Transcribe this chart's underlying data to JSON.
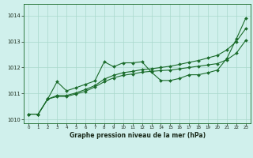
{
  "xlabel": "Graphe pression niveau de la mer (hPa)",
  "ylim": [
    1009.85,
    1014.45
  ],
  "xlim": [
    -0.5,
    23.5
  ],
  "xticks": [
    0,
    1,
    2,
    3,
    4,
    5,
    6,
    7,
    8,
    9,
    10,
    11,
    12,
    13,
    14,
    15,
    16,
    17,
    18,
    19,
    20,
    21,
    22,
    23
  ],
  "yticks": [
    1010,
    1011,
    1012,
    1013,
    1014
  ],
  "bg_color": "#d0f0ec",
  "grid_color": "#a8d8cc",
  "line_color": "#1a6b2a",
  "series1": [
    1010.2,
    1010.2,
    1010.78,
    1011.45,
    1011.1,
    1011.22,
    1011.35,
    1011.48,
    1012.22,
    1012.03,
    1012.18,
    1012.18,
    1012.22,
    1011.82,
    1011.5,
    1011.5,
    1011.58,
    1011.72,
    1011.72,
    1011.8,
    1011.9,
    1012.35,
    1013.1,
    1013.9
  ],
  "series2": [
    1010.2,
    1010.2,
    1010.78,
    1010.88,
    1010.88,
    1010.98,
    1011.08,
    1011.25,
    1011.45,
    1011.6,
    1011.7,
    1011.75,
    1011.82,
    1011.85,
    1011.88,
    1011.9,
    1011.95,
    1012.0,
    1012.05,
    1012.1,
    1012.15,
    1012.3,
    1012.55,
    1013.05
  ],
  "series3": [
    1010.2,
    1010.2,
    1010.78,
    1010.92,
    1010.92,
    1011.02,
    1011.15,
    1011.3,
    1011.55,
    1011.7,
    1011.8,
    1011.85,
    1011.92,
    1011.95,
    1012.0,
    1012.05,
    1012.12,
    1012.2,
    1012.27,
    1012.37,
    1012.47,
    1012.68,
    1013.0,
    1013.5
  ],
  "marker": "D",
  "markersize": 2.0,
  "linewidth": 0.8
}
